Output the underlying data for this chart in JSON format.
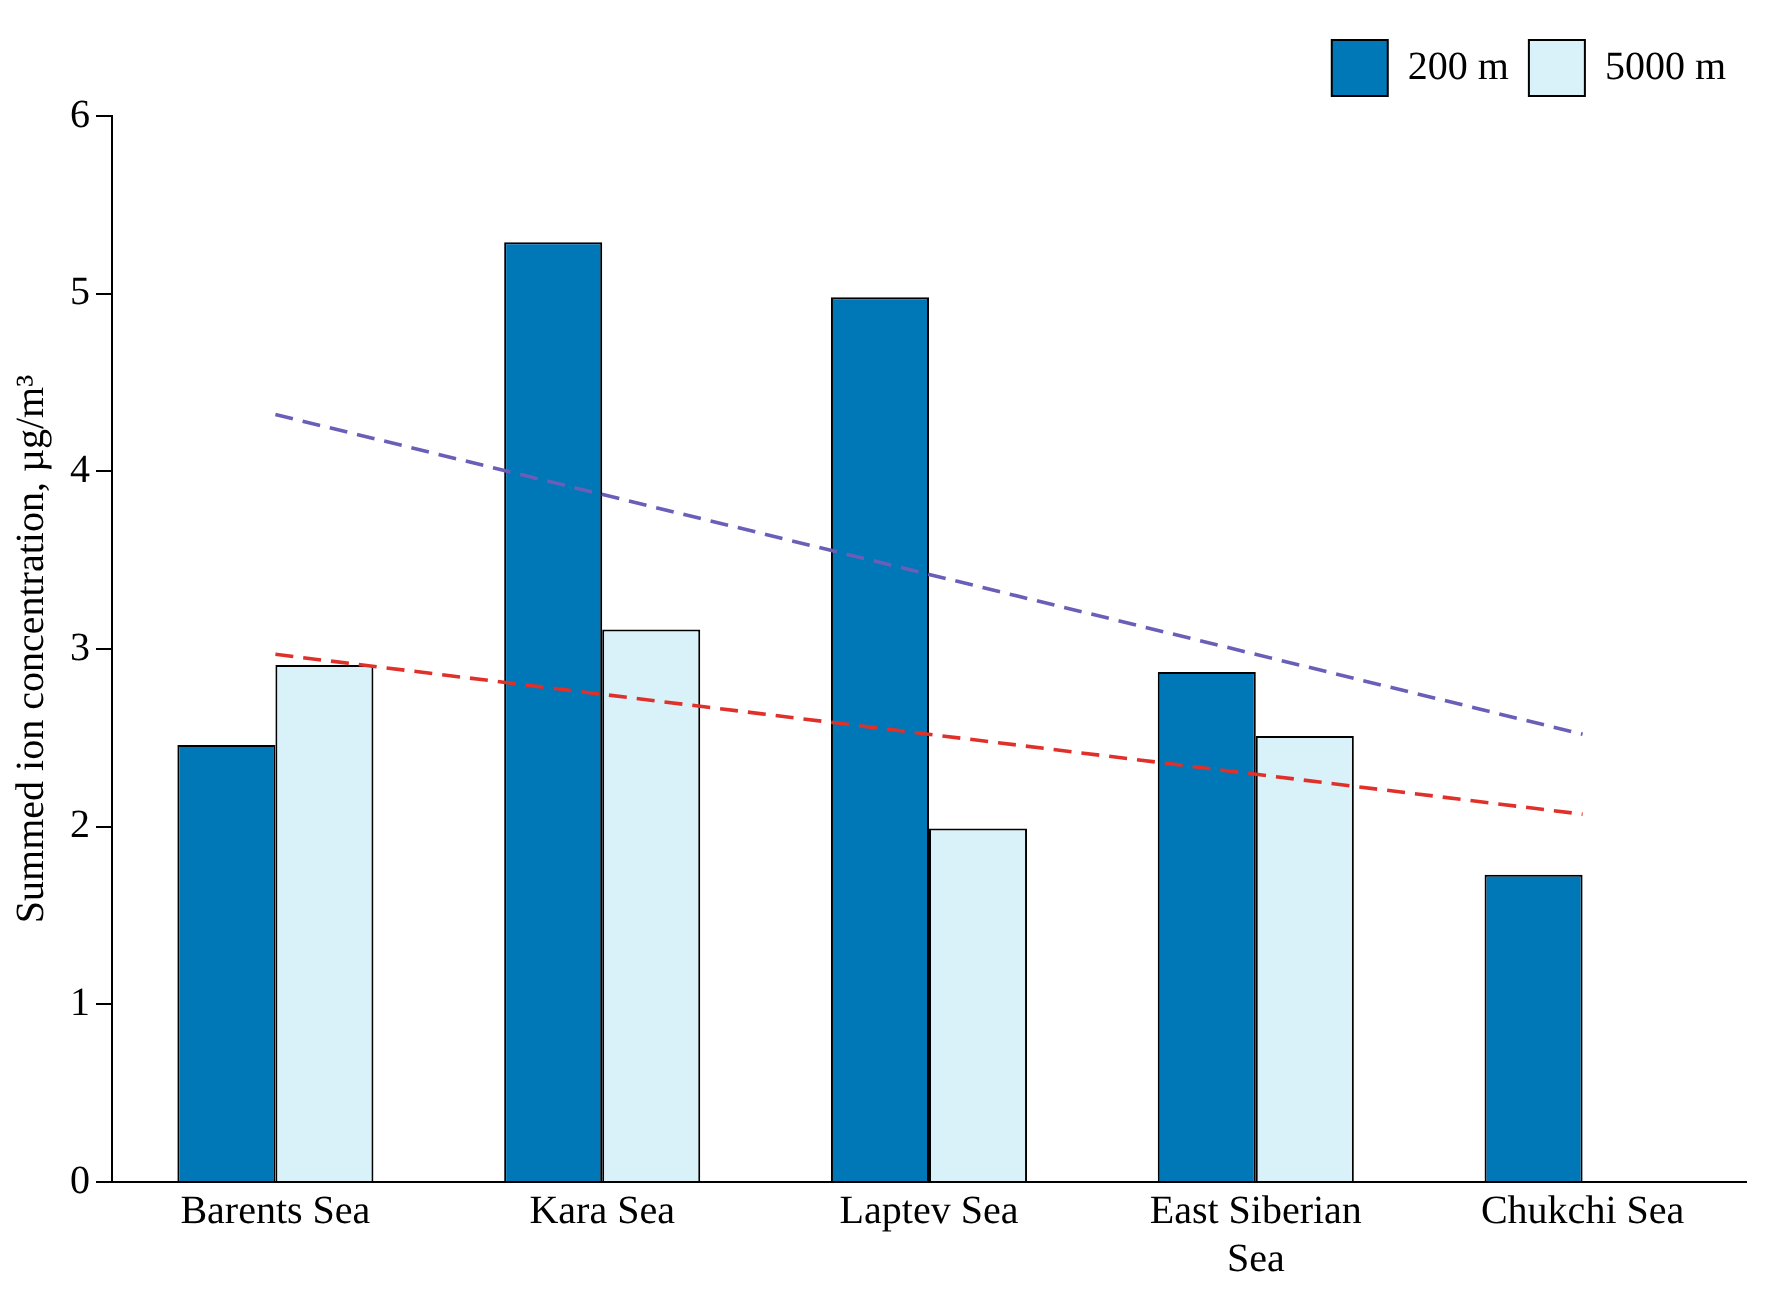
{
  "chart_data": {
    "type": "bar",
    "ylabel": "Summed ion concentration, µg/m³",
    "categories": [
      "Barents Sea",
      "Kara Sea",
      "Laptev Sea",
      "East Siberian Sea",
      "Chukchi Sea"
    ],
    "series": [
      {
        "name": "200 m",
        "color": "#0077b6",
        "values": [
          2.46,
          5.29,
          4.98,
          2.87,
          1.73
        ]
      },
      {
        "name": "5000 m",
        "color": "#d9f2fa",
        "values": [
          2.91,
          3.11,
          1.99,
          2.51,
          null
        ]
      },
      {
        "type": "line",
        "color": "#6a5fb8",
        "line_style": "dashed",
        "values": [
          4.32,
          null,
          null,
          null,
          2.52
        ]
      },
      {
        "type": "line",
        "color": "#e0302a",
        "line_style": "dashed",
        "values": [
          2.97,
          null,
          null,
          null,
          2.07
        ]
      }
    ],
    "ylim": [
      0,
      6
    ],
    "yticks": [
      0,
      1,
      2,
      3,
      4,
      5,
      6
    ],
    "grid": false,
    "legend": "top right"
  }
}
